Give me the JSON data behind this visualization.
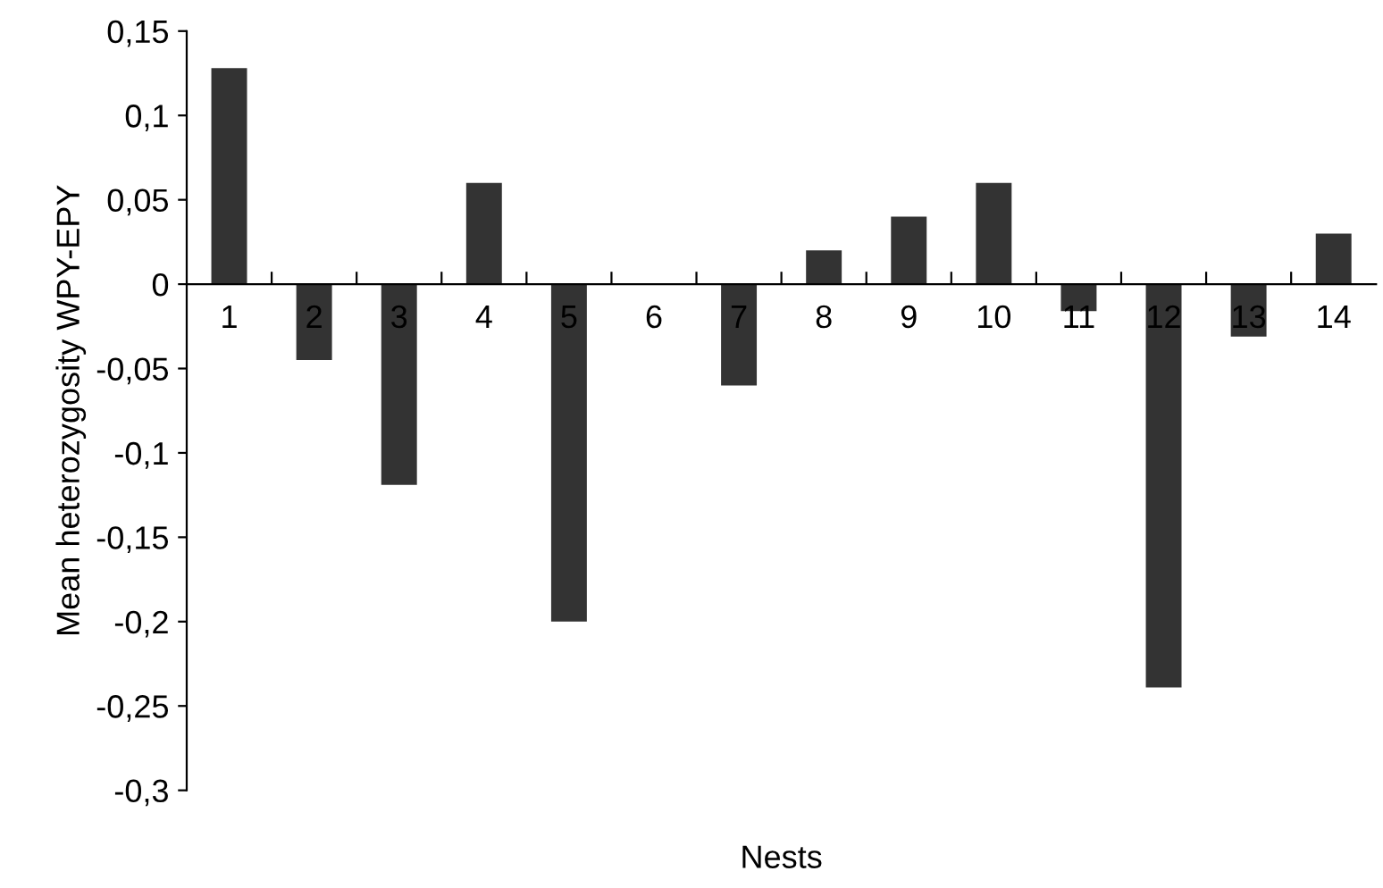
{
  "chart_data": {
    "type": "bar",
    "xlabel": "Nests",
    "ylabel": "Mean heterozygosity WPY-EPY",
    "categories": [
      "1",
      "2",
      "3",
      "4",
      "5",
      "6",
      "7",
      "8",
      "9",
      "10",
      "11",
      "12",
      "13",
      "14"
    ],
    "values": [
      0.128,
      -0.045,
      -0.119,
      0.06,
      -0.2,
      0,
      -0.06,
      0.02,
      0.04,
      0.06,
      -0.016,
      -0.239,
      -0.031,
      0.03
    ],
    "color": "#333333",
    "ylim": [
      -0.3,
      0.15
    ],
    "yticks": [
      {
        "value": -0.3,
        "label": "-0,3"
      },
      {
        "value": -0.25,
        "label": "-0,25"
      },
      {
        "value": -0.2,
        "label": "-0,2"
      },
      {
        "value": -0.15,
        "label": "-0,15"
      },
      {
        "value": -0.1,
        "label": "-0,1"
      },
      {
        "value": -0.05,
        "label": "-0,05"
      },
      {
        "value": 0,
        "label": "0"
      },
      {
        "value": 0.05,
        "label": "0,05"
      },
      {
        "value": 0.1,
        "label": "0,1"
      },
      {
        "value": 0.15,
        "label": "0,15"
      }
    ],
    "grid": false,
    "legend": false
  }
}
